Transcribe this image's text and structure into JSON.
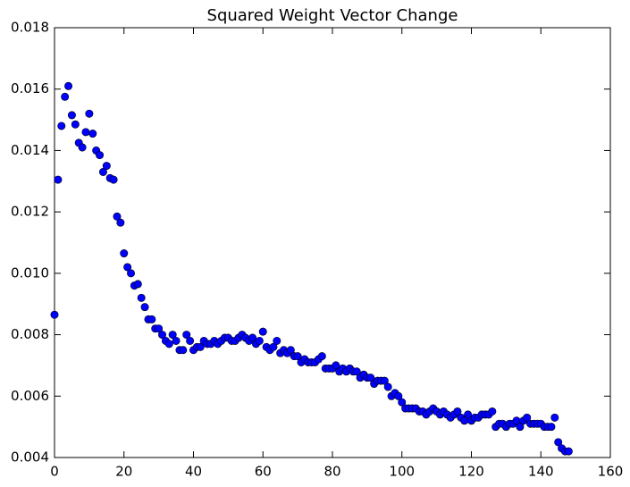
{
  "chart_data": {
    "type": "scatter",
    "title": "Squared Weight Vector Change",
    "x": [
      0,
      1,
      2,
      3,
      4,
      5,
      6,
      7,
      8,
      9,
      10,
      11,
      12,
      13,
      14,
      15,
      16,
      17,
      18,
      19,
      20,
      21,
      22,
      23,
      24,
      25,
      26,
      27,
      28,
      29,
      30,
      31,
      32,
      33,
      34,
      35,
      36,
      37,
      38,
      39,
      40,
      41,
      42,
      43,
      44,
      45,
      46,
      47,
      48,
      49,
      50,
      51,
      52,
      53,
      54,
      55,
      56,
      57,
      58,
      59,
      60,
      61,
      62,
      63,
      64,
      65,
      66,
      67,
      68,
      69,
      70,
      71,
      72,
      73,
      74,
      75,
      76,
      77,
      78,
      79,
      80,
      81,
      82,
      83,
      84,
      85,
      86,
      87,
      88,
      89,
      90,
      91,
      92,
      93,
      94,
      95,
      96,
      97,
      98,
      99,
      100,
      101,
      102,
      103,
      104,
      105,
      106,
      107,
      108,
      109,
      110,
      111,
      112,
      113,
      114,
      115,
      116,
      117,
      118,
      119,
      120,
      121,
      122,
      123,
      124,
      125,
      126,
      127,
      128,
      129,
      130,
      131,
      132,
      133,
      134,
      135,
      136,
      137,
      138,
      139,
      140,
      141,
      142,
      143,
      144,
      145,
      146,
      147,
      148
    ],
    "values": [
      0.00865,
      0.01305,
      0.0148,
      0.01575,
      0.0161,
      0.01515,
      0.01485,
      0.01425,
      0.0141,
      0.0146,
      0.0152,
      0.01455,
      0.014,
      0.01385,
      0.0133,
      0.0135,
      0.0131,
      0.01305,
      0.01185,
      0.01165,
      0.01065,
      0.0102,
      0.01,
      0.0096,
      0.00965,
      0.0092,
      0.0089,
      0.0085,
      0.0085,
      0.0082,
      0.0082,
      0.008,
      0.0078,
      0.0077,
      0.008,
      0.0078,
      0.0075,
      0.0075,
      0.008,
      0.0078,
      0.0075,
      0.0076,
      0.0076,
      0.0078,
      0.0077,
      0.0077,
      0.0078,
      0.0077,
      0.0078,
      0.0079,
      0.0079,
      0.0078,
      0.0078,
      0.0079,
      0.008,
      0.0079,
      0.0078,
      0.0079,
      0.0077,
      0.0078,
      0.0081,
      0.0076,
      0.0075,
      0.0076,
      0.0078,
      0.0074,
      0.0075,
      0.0074,
      0.0075,
      0.0073,
      0.0073,
      0.0071,
      0.0072,
      0.0071,
      0.0071,
      0.0071,
      0.0072,
      0.0073,
      0.0069,
      0.0069,
      0.0069,
      0.007,
      0.0068,
      0.0069,
      0.0068,
      0.0069,
      0.0068,
      0.0068,
      0.0066,
      0.0067,
      0.0066,
      0.0066,
      0.0064,
      0.0065,
      0.0065,
      0.0065,
      0.0063,
      0.006,
      0.0061,
      0.006,
      0.0058,
      0.0056,
      0.0056,
      0.0056,
      0.0056,
      0.0055,
      0.0055,
      0.0054,
      0.0055,
      0.0056,
      0.0055,
      0.0054,
      0.0055,
      0.0054,
      0.0053,
      0.0054,
      0.0055,
      0.0053,
      0.0052,
      0.0054,
      0.0052,
      0.0053,
      0.0053,
      0.0054,
      0.0054,
      0.0054,
      0.0055,
      0.005,
      0.0051,
      0.0051,
      0.005,
      0.0051,
      0.0051,
      0.0052,
      0.005,
      0.0052,
      0.0053,
      0.0051,
      0.0051,
      0.0051,
      0.0051,
      0.005,
      0.005,
      0.005,
      0.0053,
      0.0045,
      0.0043,
      0.0042,
      0.0042
    ],
    "color": "#0000ff",
    "xlim": [
      0,
      160
    ],
    "xticks": [
      0,
      20,
      40,
      60,
      80,
      100,
      120,
      140,
      160
    ],
    "ylim": [
      0.004,
      0.018
    ],
    "yticks": [
      0.004,
      0.006,
      0.008,
      {
        "value": 0.01,
        "label": "0.010"
      },
      0.012,
      0.014,
      0.016,
      0.018
    ],
    "grid": false
  }
}
